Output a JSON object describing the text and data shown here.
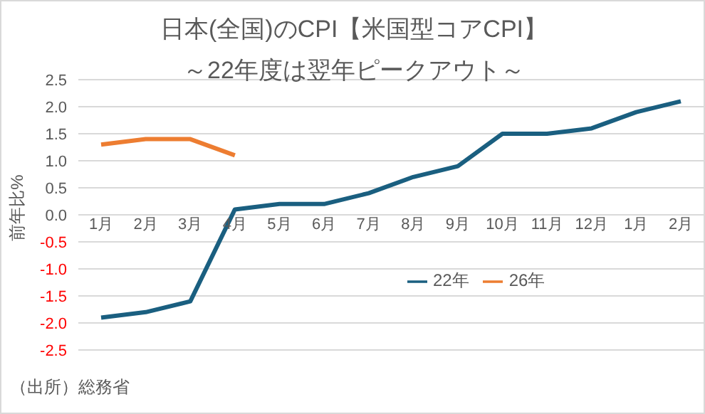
{
  "chart_data": {
    "type": "line",
    "title": "日本(全国)のCPI【米国型コアCPI】",
    "subtitle": "～22年度は翌年ピークアウト～",
    "ylabel": "前年比%",
    "annotations": [
      "（出所）総務省"
    ],
    "categories": [
      "1月",
      "2月",
      "3月",
      "4月",
      "5月",
      "6月",
      "7月",
      "8月",
      "9月",
      "10月",
      "11月",
      "12月",
      "1月",
      "2月"
    ],
    "series": [
      {
        "name": "22年",
        "color": "#1a5f80",
        "values": [
          -1.9,
          -1.8,
          -1.6,
          0.1,
          0.2,
          0.2,
          0.4,
          0.7,
          0.9,
          1.5,
          1.5,
          1.6,
          1.9,
          2.1
        ]
      },
      {
        "name": "26年",
        "color": "#ed7d31",
        "values": [
          1.3,
          1.4,
          1.4,
          1.1,
          null,
          null,
          null,
          null,
          null,
          null,
          null,
          null,
          null,
          null
        ]
      }
    ],
    "ylim": [
      -2.5,
      2.5
    ],
    "yticks": [
      -2.5,
      {
        "value": -2,
        "label": "-2.0"
      },
      -1.5,
      {
        "value": -1,
        "label": "-1.0"
      },
      -0.5,
      {
        "value": 0,
        "label": "0.0"
      },
      0.5,
      {
        "value": 1,
        "label": "1.0"
      },
      1.5,
      {
        "value": 2,
        "label": "2.0"
      },
      2.5
    ],
    "grid": "y",
    "legend": "bottom right",
    "marker": "none",
    "line_style": "solid"
  }
}
